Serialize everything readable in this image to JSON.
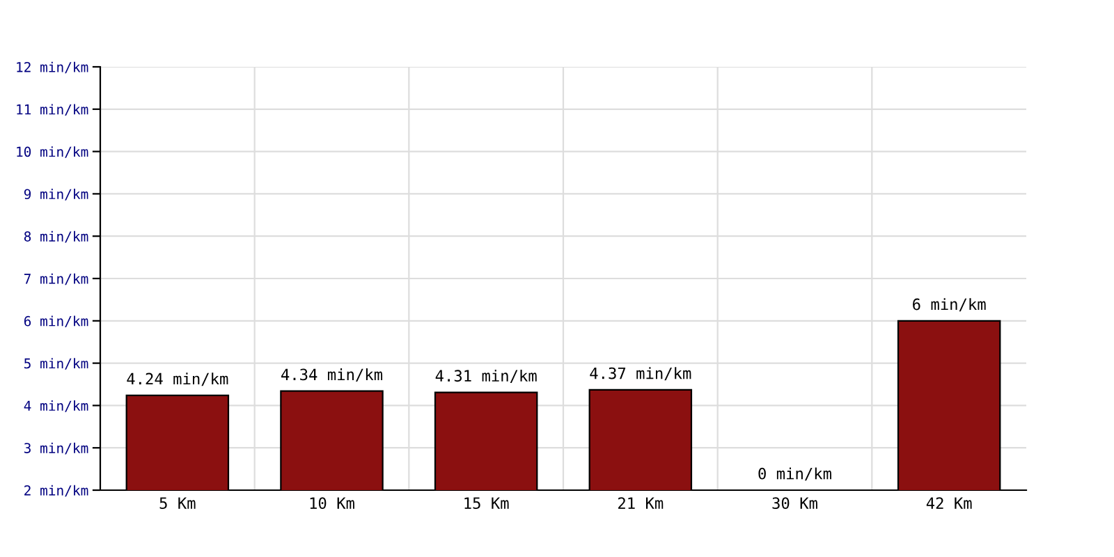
{
  "chart_data": {
    "type": "bar",
    "categories": [
      "5 Km",
      "10 Km",
      "15 Km",
      "21 Km",
      "30 Km",
      "42 Km"
    ],
    "values": [
      4.24,
      4.34,
      4.31,
      4.37,
      null,
      6
    ],
    "value_labels": [
      "4.24 min/km",
      "4.34 min/km",
      "4.31 min/km",
      "4.37 min/km",
      "0 min/km",
      "6 min/km"
    ],
    "color": "#8b1010",
    "ylim": [
      2,
      12
    ],
    "yticks": [
      {
        "value": 2,
        "label": "2 min/km"
      },
      {
        "value": 3,
        "label": "3 min/km"
      },
      {
        "value": 4,
        "label": "4 min/km"
      },
      {
        "value": 5,
        "label": "5 min/km"
      },
      {
        "value": 6,
        "label": "6 min/km"
      },
      {
        "value": 7,
        "label": "7 min/km"
      },
      {
        "value": 8,
        "label": "8 min/km"
      },
      {
        "value": 9,
        "label": "9 min/km"
      },
      {
        "value": 10,
        "label": "10 min/km"
      },
      {
        "value": 11,
        "label": "11 min/km"
      },
      {
        "value": 12,
        "label": "12 min/km"
      }
    ],
    "grid": true
  }
}
